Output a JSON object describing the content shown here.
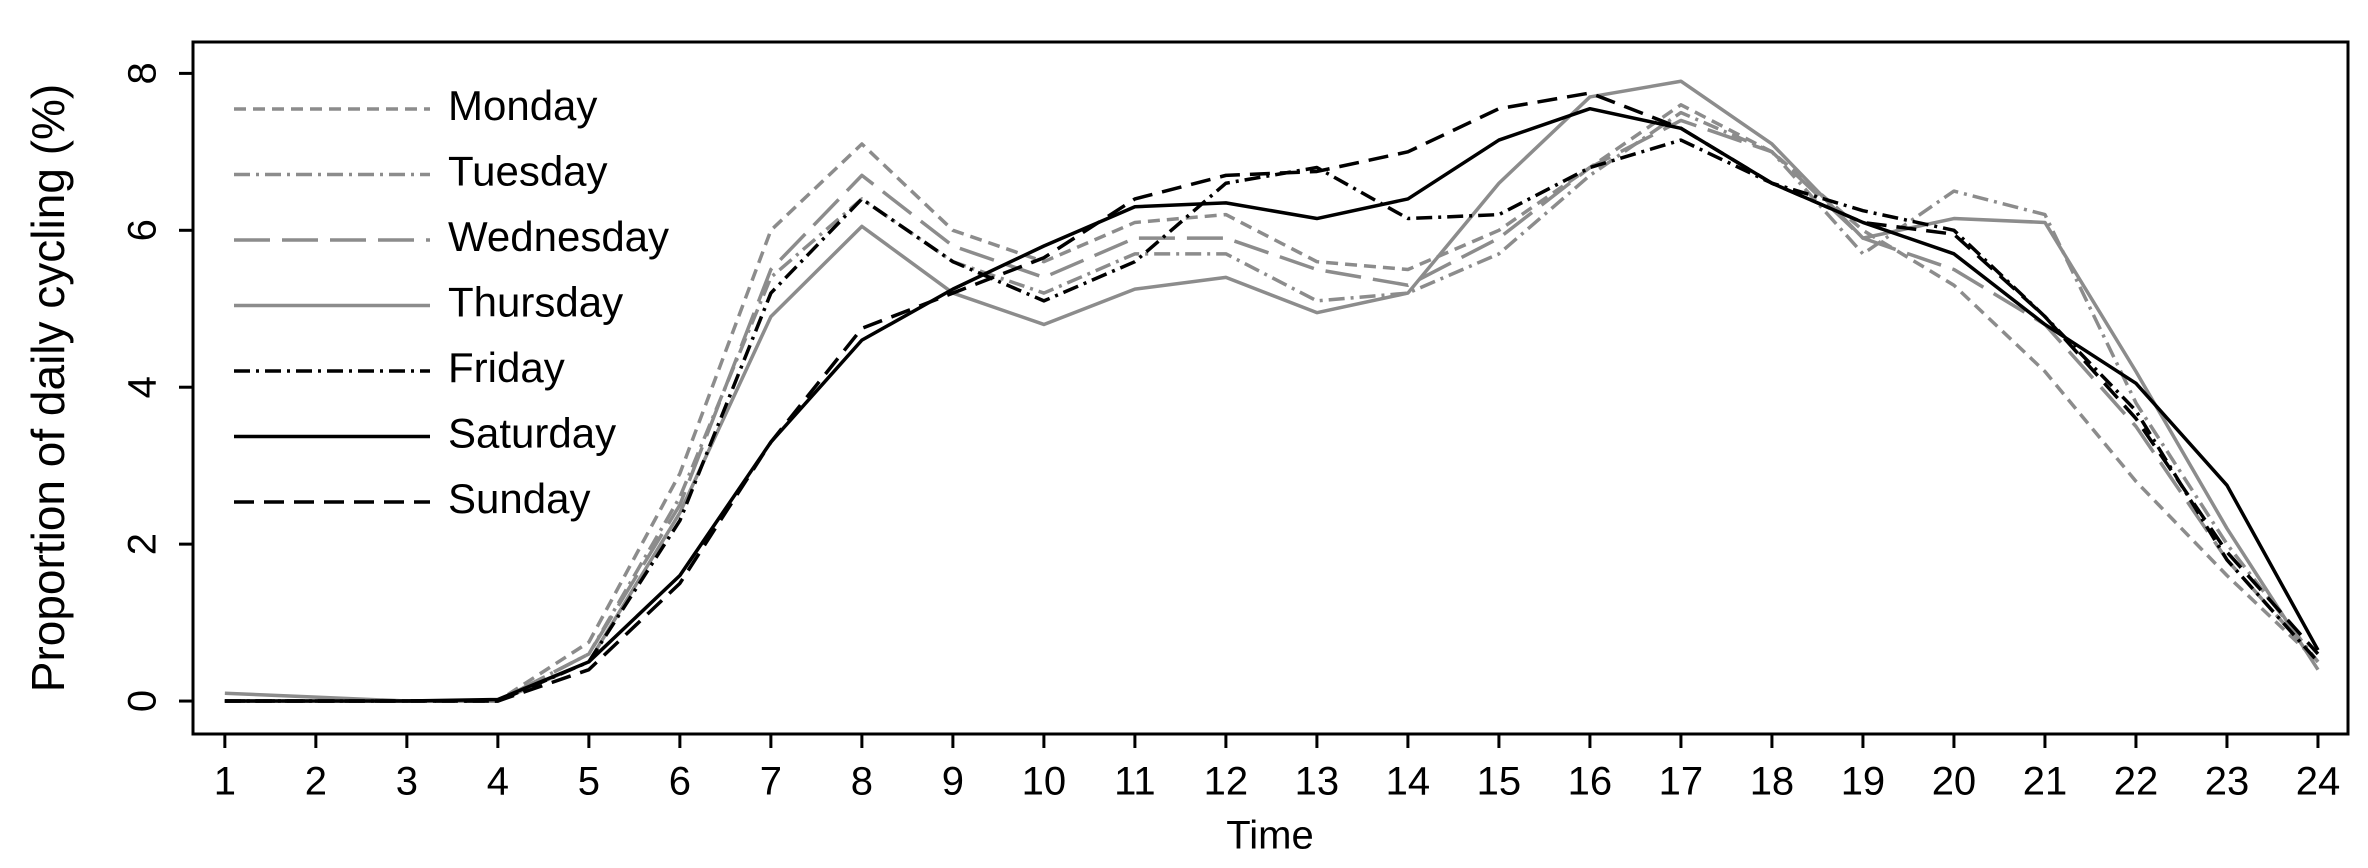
{
  "chart_data": {
    "type": "line",
    "x_label": "Time",
    "y_label": "Proportion of daily cycling (%)",
    "x": [
      1,
      2,
      3,
      4,
      5,
      6,
      7,
      8,
      9,
      10,
      11,
      12,
      13,
      14,
      15,
      16,
      17,
      18,
      19,
      20,
      21,
      22,
      23,
      24
    ],
    "xlim": [
      0.65,
      24.33
    ],
    "xticks": [
      1,
      2,
      3,
      4,
      5,
      6,
      7,
      8,
      9,
      10,
      11,
      12,
      13,
      14,
      15,
      16,
      17,
      18,
      19,
      20,
      21,
      22,
      23,
      24
    ],
    "ylim": [
      -0.42,
      8.4
    ],
    "yticks": [
      0,
      2,
      4,
      6,
      8
    ],
    "grid": false,
    "legend": "top-left",
    "series": [
      {
        "name": "Monday",
        "color": "#8c8c8c",
        "dash": "short-dash",
        "values": [
          0,
          0,
          0,
          0,
          0.75,
          2.9,
          6.0,
          7.1,
          6.0,
          5.6,
          6.1,
          6.2,
          5.6,
          5.5,
          6.0,
          6.8,
          7.6,
          7.0,
          6.0,
          5.3,
          4.2,
          2.8,
          1.6,
          0.5
        ]
      },
      {
        "name": "Tuesday",
        "color": "#8c8c8c",
        "dash": "dash-dot",
        "values": [
          0,
          0,
          0,
          0,
          0.6,
          2.6,
          5.4,
          6.4,
          5.6,
          5.2,
          5.7,
          5.7,
          5.1,
          5.2,
          5.7,
          6.7,
          7.5,
          7.0,
          5.7,
          6.5,
          6.2,
          3.8,
          2.0,
          0.5
        ]
      },
      {
        "name": "Wednesday",
        "color": "#8c8c8c",
        "dash": "long-dash",
        "values": [
          0,
          0,
          0,
          0,
          0.6,
          2.5,
          5.5,
          6.7,
          5.8,
          5.4,
          5.9,
          5.9,
          5.5,
          5.3,
          5.9,
          6.8,
          7.4,
          7.0,
          5.9,
          5.5,
          4.8,
          3.5,
          1.8,
          0.5
        ]
      },
      {
        "name": "Thursday",
        "color": "#8c8c8c",
        "dash": "solid",
        "values": [
          0.1,
          0.05,
          0,
          0,
          0.5,
          2.4,
          4.9,
          6.05,
          5.2,
          4.8,
          5.25,
          5.4,
          4.95,
          5.2,
          6.6,
          7.7,
          7.9,
          7.1,
          5.9,
          6.15,
          6.1,
          4.2,
          2.2,
          0.4
        ]
      },
      {
        "name": "Friday",
        "color": "#000000",
        "dash": "dash-dot",
        "values": [
          0,
          0,
          0,
          0,
          0.5,
          2.3,
          5.2,
          6.4,
          5.6,
          5.1,
          5.6,
          6.6,
          6.8,
          6.15,
          6.2,
          6.8,
          7.15,
          6.6,
          6.25,
          6.0,
          4.9,
          3.7,
          1.8,
          0.5
        ]
      },
      {
        "name": "Saturday",
        "color": "#000000",
        "dash": "solid",
        "values": [
          0,
          0,
          0,
          0.02,
          0.5,
          1.6,
          3.3,
          4.6,
          5.25,
          5.8,
          6.3,
          6.35,
          6.15,
          6.4,
          7.15,
          7.55,
          7.3,
          6.6,
          6.1,
          5.7,
          4.8,
          4.05,
          2.75,
          0.65
        ]
      },
      {
        "name": "Sunday",
        "color": "#000000",
        "dash": "medium-dash",
        "values": [
          0,
          0,
          0,
          0,
          0.4,
          1.5,
          3.3,
          4.75,
          5.2,
          5.65,
          6.4,
          6.7,
          6.75,
          7.0,
          7.55,
          7.75,
          7.3,
          6.6,
          6.1,
          5.95,
          4.9,
          3.6,
          1.9,
          0.6
        ]
      }
    ]
  }
}
